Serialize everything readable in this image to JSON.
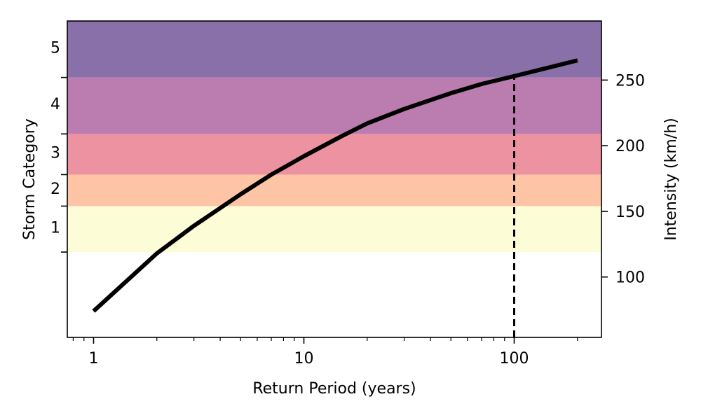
{
  "chart_data": {
    "type": "line",
    "xlabel": "Return Period (years)",
    "ylabel_left": "Storm Category",
    "ylabel_right": "Intensity (km/h)",
    "xscale": "log",
    "xlim": [
      0.75,
      260
    ],
    "ylim": [
      54,
      295
    ],
    "x_ticks": [
      1,
      10,
      100
    ],
    "x_tick_labels": [
      "1",
      "10",
      "100"
    ],
    "right_ticks": [
      100,
      150,
      200,
      250
    ],
    "right_tick_labels": [
      "100",
      "150",
      "200",
      "250"
    ],
    "category_bands": [
      {
        "label": "1",
        "from": 119,
        "to": 154,
        "color": "#fcfcd6"
      },
      {
        "label": "2",
        "from": 154,
        "to": 178,
        "color": "#fec4a6"
      },
      {
        "label": "3",
        "from": 178,
        "to": 209,
        "color": "#ec92a1"
      },
      {
        "label": "4",
        "from": 209,
        "to": 252,
        "color": "#bb7caf"
      },
      {
        "label": "5",
        "from": 252,
        "to": 295,
        "color": "#8970a9"
      }
    ],
    "series": [
      {
        "color": "#000000",
        "x": [
          1,
          2,
          3,
          5,
          7,
          10,
          15,
          20,
          30,
          50,
          70,
          100,
          150,
          200
        ],
        "y": [
          74,
          118,
          139,
          163,
          178,
          192,
          207,
          217,
          228,
          240,
          247,
          253,
          260,
          265
        ]
      }
    ],
    "reference_line": {
      "x": 100,
      "y": 253,
      "style": "dashed",
      "color": "#000000"
    },
    "grid": false
  }
}
